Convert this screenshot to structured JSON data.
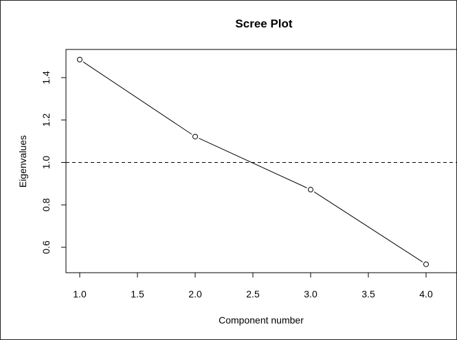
{
  "chart_data": {
    "type": "line",
    "title": "Scree Plot",
    "xlabel": "Component number",
    "ylabel": "Eigenvalues",
    "x": [
      1,
      2,
      3,
      4
    ],
    "series": [
      {
        "values": [
          1.485,
          1.122,
          0.872,
          0.52
        ]
      }
    ],
    "xlim": [
      1.0,
      4.0
    ],
    "ylim": [
      0.6,
      1.4
    ],
    "xticks": [
      "1.0",
      "1.5",
      "2.0",
      "2.5",
      "3.0",
      "3.5",
      "4.0"
    ],
    "yticks": [
      "0.6",
      "0.8",
      "1.0",
      "1.2",
      "1.4"
    ],
    "reference_line": {
      "y": 1.0,
      "style": "dashed"
    },
    "markers": "open-circle",
    "grid": false,
    "legend": "none"
  }
}
